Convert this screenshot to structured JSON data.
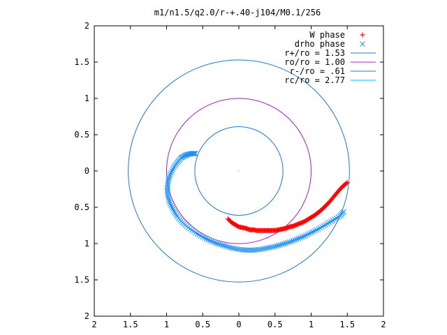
{
  "chart_data": {
    "type": "scatter",
    "title": "m1/n1.5/q2.0/r-+.40-j104/M0.1/256",
    "xlim": [
      -2,
      2
    ],
    "ylim": [
      -2,
      2
    ],
    "x_ticks": [
      -2,
      -1.5,
      -1,
      -0.5,
      0,
      0.5,
      1,
      1.5,
      2
    ],
    "y_ticks": [
      -2,
      -1.5,
      -1,
      -0.5,
      0,
      0.5,
      1,
      1.5,
      2
    ],
    "x_tick_labels": [
      "2",
      "1.5",
      "1",
      "0.5",
      "0",
      "0.5",
      "1",
      "1.5",
      "2"
    ],
    "y_tick_labels": [
      "2",
      "1.5",
      "1",
      "0.5",
      "0",
      "0.5",
      "1",
      "1.5",
      "2"
    ],
    "legend_position": "top-right",
    "legend": [
      {
        "label": "W phase",
        "kind": "plus",
        "color": "#ff0000"
      },
      {
        "label": "drho phase",
        "kind": "cross",
        "color": "#1e90ff"
      },
      {
        "label": "r+/ro = 1.53",
        "kind": "line",
        "color": "#1e78c8"
      },
      {
        "label": "ro/ro = 1.00",
        "kind": "line",
        "color": "#a020c0"
      },
      {
        "label": "r-/ro = .61",
        "kind": "line",
        "color": "#1e78c8"
      },
      {
        "label": "rc/ro = 2.77",
        "kind": "line",
        "color": "#00bfff"
      }
    ],
    "circles": [
      {
        "name": "r+/ro = 1.53",
        "r": 1.53,
        "color": "#1e78c8"
      },
      {
        "name": "ro/ro = 1.00",
        "r": 1.0,
        "color": "#a020c0"
      },
      {
        "name": "r-/ro = .61",
        "r": 0.61,
        "color": "#1e78c8"
      }
    ],
    "series": [
      {
        "name": "W phase",
        "marker": "plus",
        "color": "#ff0000",
        "x": [
          -0.15,
          -0.1,
          -0.05,
          0.0,
          0.05,
          0.1,
          0.15,
          0.2,
          0.25,
          0.3,
          0.35,
          0.4,
          0.45,
          0.5,
          0.55,
          0.6,
          0.65,
          0.7,
          0.75,
          0.8,
          0.85,
          0.9,
          0.95,
          1.0,
          1.05,
          1.1,
          1.15,
          1.2,
          1.25,
          1.3,
          1.35,
          1.4,
          1.45,
          1.5
        ],
        "y": [
          -0.66,
          -0.71,
          -0.74,
          -0.77,
          -0.78,
          -0.79,
          -0.81,
          -0.81,
          -0.82,
          -0.82,
          -0.82,
          -0.82,
          -0.82,
          -0.82,
          -0.81,
          -0.8,
          -0.79,
          -0.77,
          -0.76,
          -0.74,
          -0.72,
          -0.7,
          -0.67,
          -0.64,
          -0.61,
          -0.57,
          -0.53,
          -0.48,
          -0.43,
          -0.37,
          -0.31,
          -0.25,
          -0.2,
          -0.16
        ]
      },
      {
        "name": "drho phase",
        "marker": "cross",
        "color": "#1e90ff",
        "x": [
          -0.6,
          -0.65,
          -0.7,
          -0.75,
          -0.8,
          -0.85,
          -0.9,
          -0.95,
          -0.98,
          -0.99,
          -0.98,
          -0.95,
          -0.9,
          -0.85,
          -0.78,
          -0.7,
          -0.6,
          -0.5,
          -0.4,
          -0.3,
          -0.2,
          -0.1,
          0.0,
          0.1,
          0.2,
          0.3,
          0.4,
          0.5,
          0.6,
          0.7,
          0.8,
          0.9,
          1.0,
          1.1,
          1.2,
          1.3,
          1.4,
          1.45
        ],
        "y": [
          0.24,
          0.24,
          0.23,
          0.21,
          0.18,
          0.12,
          0.05,
          -0.05,
          -0.15,
          -0.25,
          -0.35,
          -0.45,
          -0.55,
          -0.63,
          -0.71,
          -0.78,
          -0.85,
          -0.91,
          -0.96,
          -1.0,
          -1.03,
          -1.06,
          -1.08,
          -1.09,
          -1.09,
          -1.08,
          -1.06,
          -1.04,
          -1.01,
          -0.98,
          -0.94,
          -0.9,
          -0.85,
          -0.8,
          -0.74,
          -0.68,
          -0.62,
          -0.56
        ]
      }
    ]
  }
}
